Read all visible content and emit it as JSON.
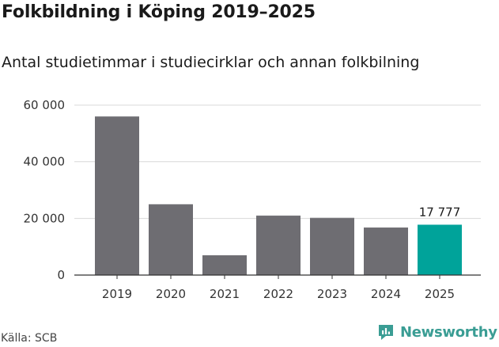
{
  "header": {
    "title": "Folkbildning i Köping 2019–2025",
    "subtitle": "Antal studietimmar i studiecirklar och annan folkbilning"
  },
  "footer": {
    "source": "Källa: SCB",
    "brand": "Newsworthy",
    "brand_icon": "newsworthy-logo-icon"
  },
  "chart_data": {
    "type": "bar",
    "title": "Folkbildning i Köping 2019–2025",
    "subtitle": "Antal studietimmar i studiecirklar och annan folkbilning",
    "xlabel": "",
    "ylabel": "",
    "categories": [
      "2019",
      "2020",
      "2021",
      "2022",
      "2023",
      "2024",
      "2025"
    ],
    "values": [
      56000,
      25000,
      7000,
      21000,
      20200,
      16800,
      17777
    ],
    "ylim": [
      0,
      60000
    ],
    "yticks": [
      0,
      20000,
      40000,
      60000
    ],
    "ytick_labels": [
      "0",
      "20 000",
      "40 000",
      "60 000"
    ],
    "grid": true,
    "legend": "none",
    "annotations": [
      {
        "category": "2025",
        "text": "17 777"
      }
    ],
    "colors": {
      "bar": "#6e6d72",
      "highlight": "#00a39a",
      "grid": "#d9d9d9",
      "axis": "#333333"
    },
    "highlight_index": 6
  }
}
